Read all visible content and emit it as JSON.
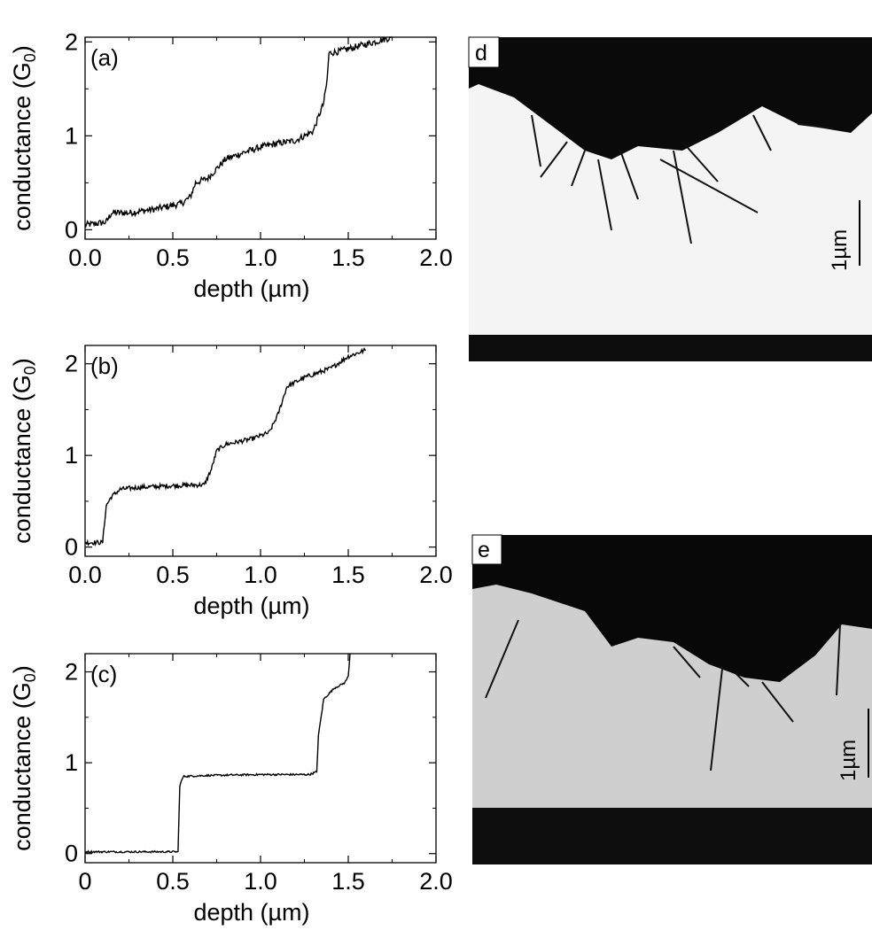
{
  "chart_data": [
    {
      "type": "line",
      "panel_label": "(a)",
      "xlabel": "depth (µm)",
      "ylabel": "conductance (G0)",
      "xlim": [
        0,
        2.0
      ],
      "ylim": [
        -0.1,
        2.05
      ],
      "xticks": [
        "0.0",
        "0.5",
        "1.0",
        "1.5",
        "2.0"
      ],
      "yticks": [
        "0",
        "1",
        "2"
      ],
      "x": [
        0.0,
        0.12,
        0.15,
        0.25,
        0.4,
        0.55,
        0.6,
        0.63,
        0.7,
        0.8,
        0.9,
        1.0,
        1.1,
        1.2,
        1.3,
        1.36,
        1.38,
        1.39,
        1.45,
        1.55,
        1.65,
        1.75
      ],
      "y": [
        0.05,
        0.08,
        0.18,
        0.18,
        0.22,
        0.28,
        0.35,
        0.5,
        0.55,
        0.75,
        0.82,
        0.88,
        0.92,
        0.95,
        1.05,
        1.35,
        1.6,
        1.88,
        1.9,
        1.95,
        2.0,
        2.05
      ],
      "noise": 0.035
    },
    {
      "type": "line",
      "panel_label": "(b)",
      "xlabel": "depth (µm)",
      "ylabel": "conductance (G0)",
      "xlim": [
        0,
        2.0
      ],
      "ylim": [
        -0.1,
        2.2
      ],
      "xticks": [
        "0.0",
        "0.5",
        "1.0",
        "1.5",
        "2.0"
      ],
      "yticks": [
        "0",
        "1",
        "2"
      ],
      "x": [
        0.0,
        0.1,
        0.12,
        0.15,
        0.2,
        0.3,
        0.5,
        0.68,
        0.72,
        0.75,
        0.8,
        0.95,
        1.05,
        1.1,
        1.15,
        1.25,
        1.4,
        1.5,
        1.6
      ],
      "y": [
        0.05,
        0.05,
        0.45,
        0.55,
        0.63,
        0.65,
        0.67,
        0.68,
        0.85,
        1.05,
        1.12,
        1.18,
        1.25,
        1.45,
        1.75,
        1.85,
        1.95,
        2.08,
        2.15
      ],
      "noise": 0.025
    },
    {
      "type": "line",
      "panel_label": "(c)",
      "xlabel": "depth (µm)",
      "ylabel": "conductance (G0)",
      "xlim": [
        0,
        2.0
      ],
      "ylim": [
        -0.1,
        2.2
      ],
      "xticks": [
        "0",
        "0.5",
        "1.0",
        "1.5",
        "2.0"
      ],
      "yticks": [
        "0",
        "1",
        "2"
      ],
      "x": [
        0.0,
        0.52,
        0.53,
        0.54,
        0.56,
        0.7,
        1.0,
        1.28,
        1.32,
        1.33,
        1.36,
        1.42,
        1.48,
        1.5,
        1.51
      ],
      "y": [
        0.02,
        0.02,
        0.02,
        0.75,
        0.85,
        0.86,
        0.87,
        0.87,
        0.9,
        1.3,
        1.7,
        1.82,
        1.88,
        1.95,
        2.2
      ],
      "noise": 0.01
    }
  ],
  "images": [
    {
      "label": "d",
      "scale_bar": "1µm"
    },
    {
      "label": "e",
      "scale_bar": "1µm"
    }
  ]
}
